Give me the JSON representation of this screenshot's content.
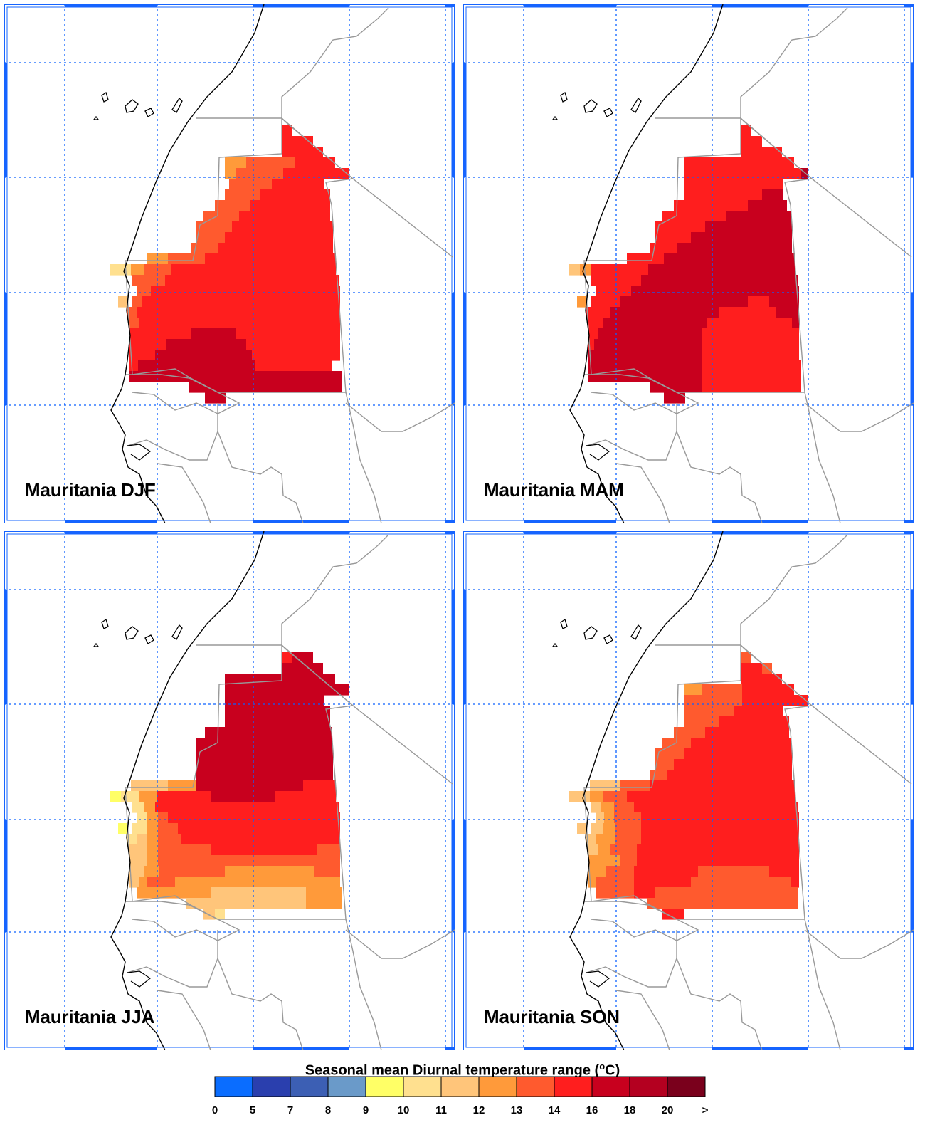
{
  "panels": [
    {
      "title": "Mauritania DJF"
    },
    {
      "title": "Mauritania MAM"
    },
    {
      "title": "Mauritania JJA"
    },
    {
      "title": "Mauritania SON"
    }
  ],
  "legend": {
    "title_prefix": "Seasonal mean Diurnal temperature range (",
    "title_sup": "o",
    "title_suffix": "C)",
    "colors": [
      "#0a6dff",
      "#2a3fae",
      "#3c5fb4",
      "#6a9ac9",
      "#ffff66",
      "#ffe08f",
      "#ffc57a",
      "#ff9a3a",
      "#ff5a2e",
      "#ff1e1e",
      "#c8001e",
      "#b40020",
      "#7a001c"
    ],
    "ticks": [
      "0",
      "5",
      "7",
      "8",
      "9",
      "10",
      "11",
      "12",
      "13",
      "14",
      "16",
      "18",
      "20",
      ">"
    ]
  },
  "colors": {
    "grid": "#0b61ff",
    "frame": "#1664ff",
    "coast": "#000000",
    "border": "#999999"
  }
}
